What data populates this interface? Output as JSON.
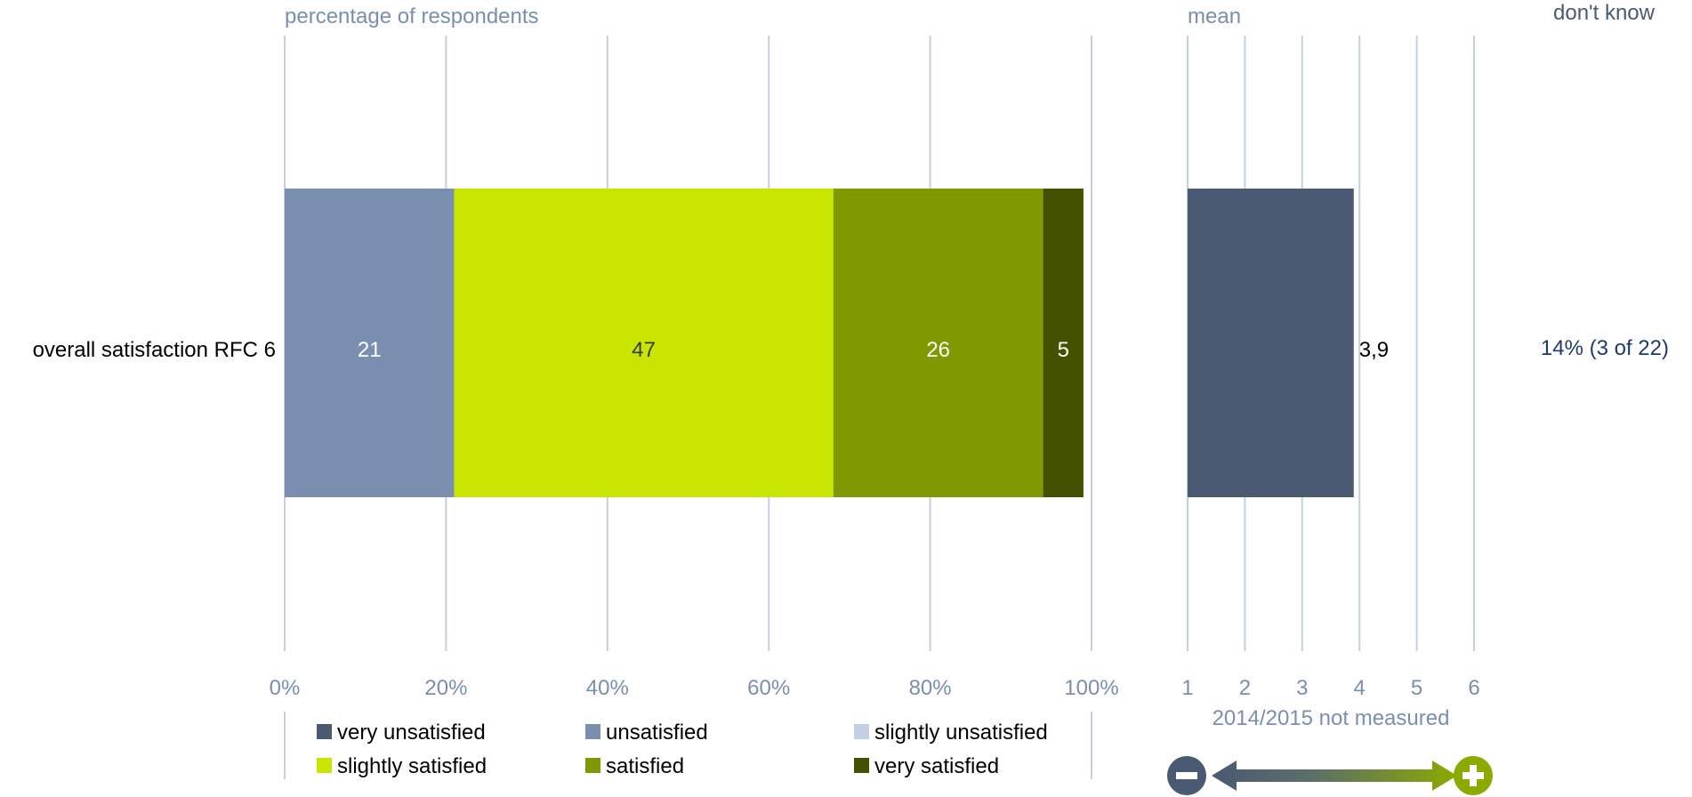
{
  "chart_data": {
    "type": "bar",
    "orientation": "horizontal-stacked",
    "panel_left_title": "percentage of respondents",
    "panel_mid_title": "mean",
    "panel_right_title": "don't know",
    "categories": [
      "overall satisfaction RFC 6"
    ],
    "series": [
      {
        "name": "very unsatisfied",
        "color": "#4a5a72",
        "values": [
          0
        ]
      },
      {
        "name": "unsatisfied",
        "color": "#7a8fb0",
        "values": [
          21
        ]
      },
      {
        "name": "slightly unsatisfied",
        "color": "#c3cfe2",
        "values": [
          0
        ]
      },
      {
        "name": "slightly satisfied",
        "color": "#c8e600",
        "values": [
          47
        ]
      },
      {
        "name": "satisfied",
        "color": "#809900",
        "values": [
          26
        ]
      },
      {
        "name": "very satisfied",
        "color": "#445200",
        "values": [
          5
        ]
      }
    ],
    "x_ticks": [
      "0%",
      "20%",
      "40%",
      "60%",
      "80%",
      "100%"
    ],
    "xlim": [
      0,
      100
    ],
    "mean": {
      "value": 3.9,
      "label": "3,9",
      "ticks": [
        "1",
        "2",
        "3",
        "4",
        "5",
        "6"
      ],
      "xlim": [
        1,
        6
      ],
      "color": "#4a5a72",
      "note": "2014/2015 not measured"
    },
    "dont_know": [
      "14% (3 of 22)"
    ],
    "scale_icons": {
      "minus": "minus-circle-icon",
      "plus": "plus-circle-icon",
      "minus_color": "#4a5a72",
      "plus_color": "#8aaa00"
    },
    "grid": true,
    "legend_position": "bottom"
  }
}
